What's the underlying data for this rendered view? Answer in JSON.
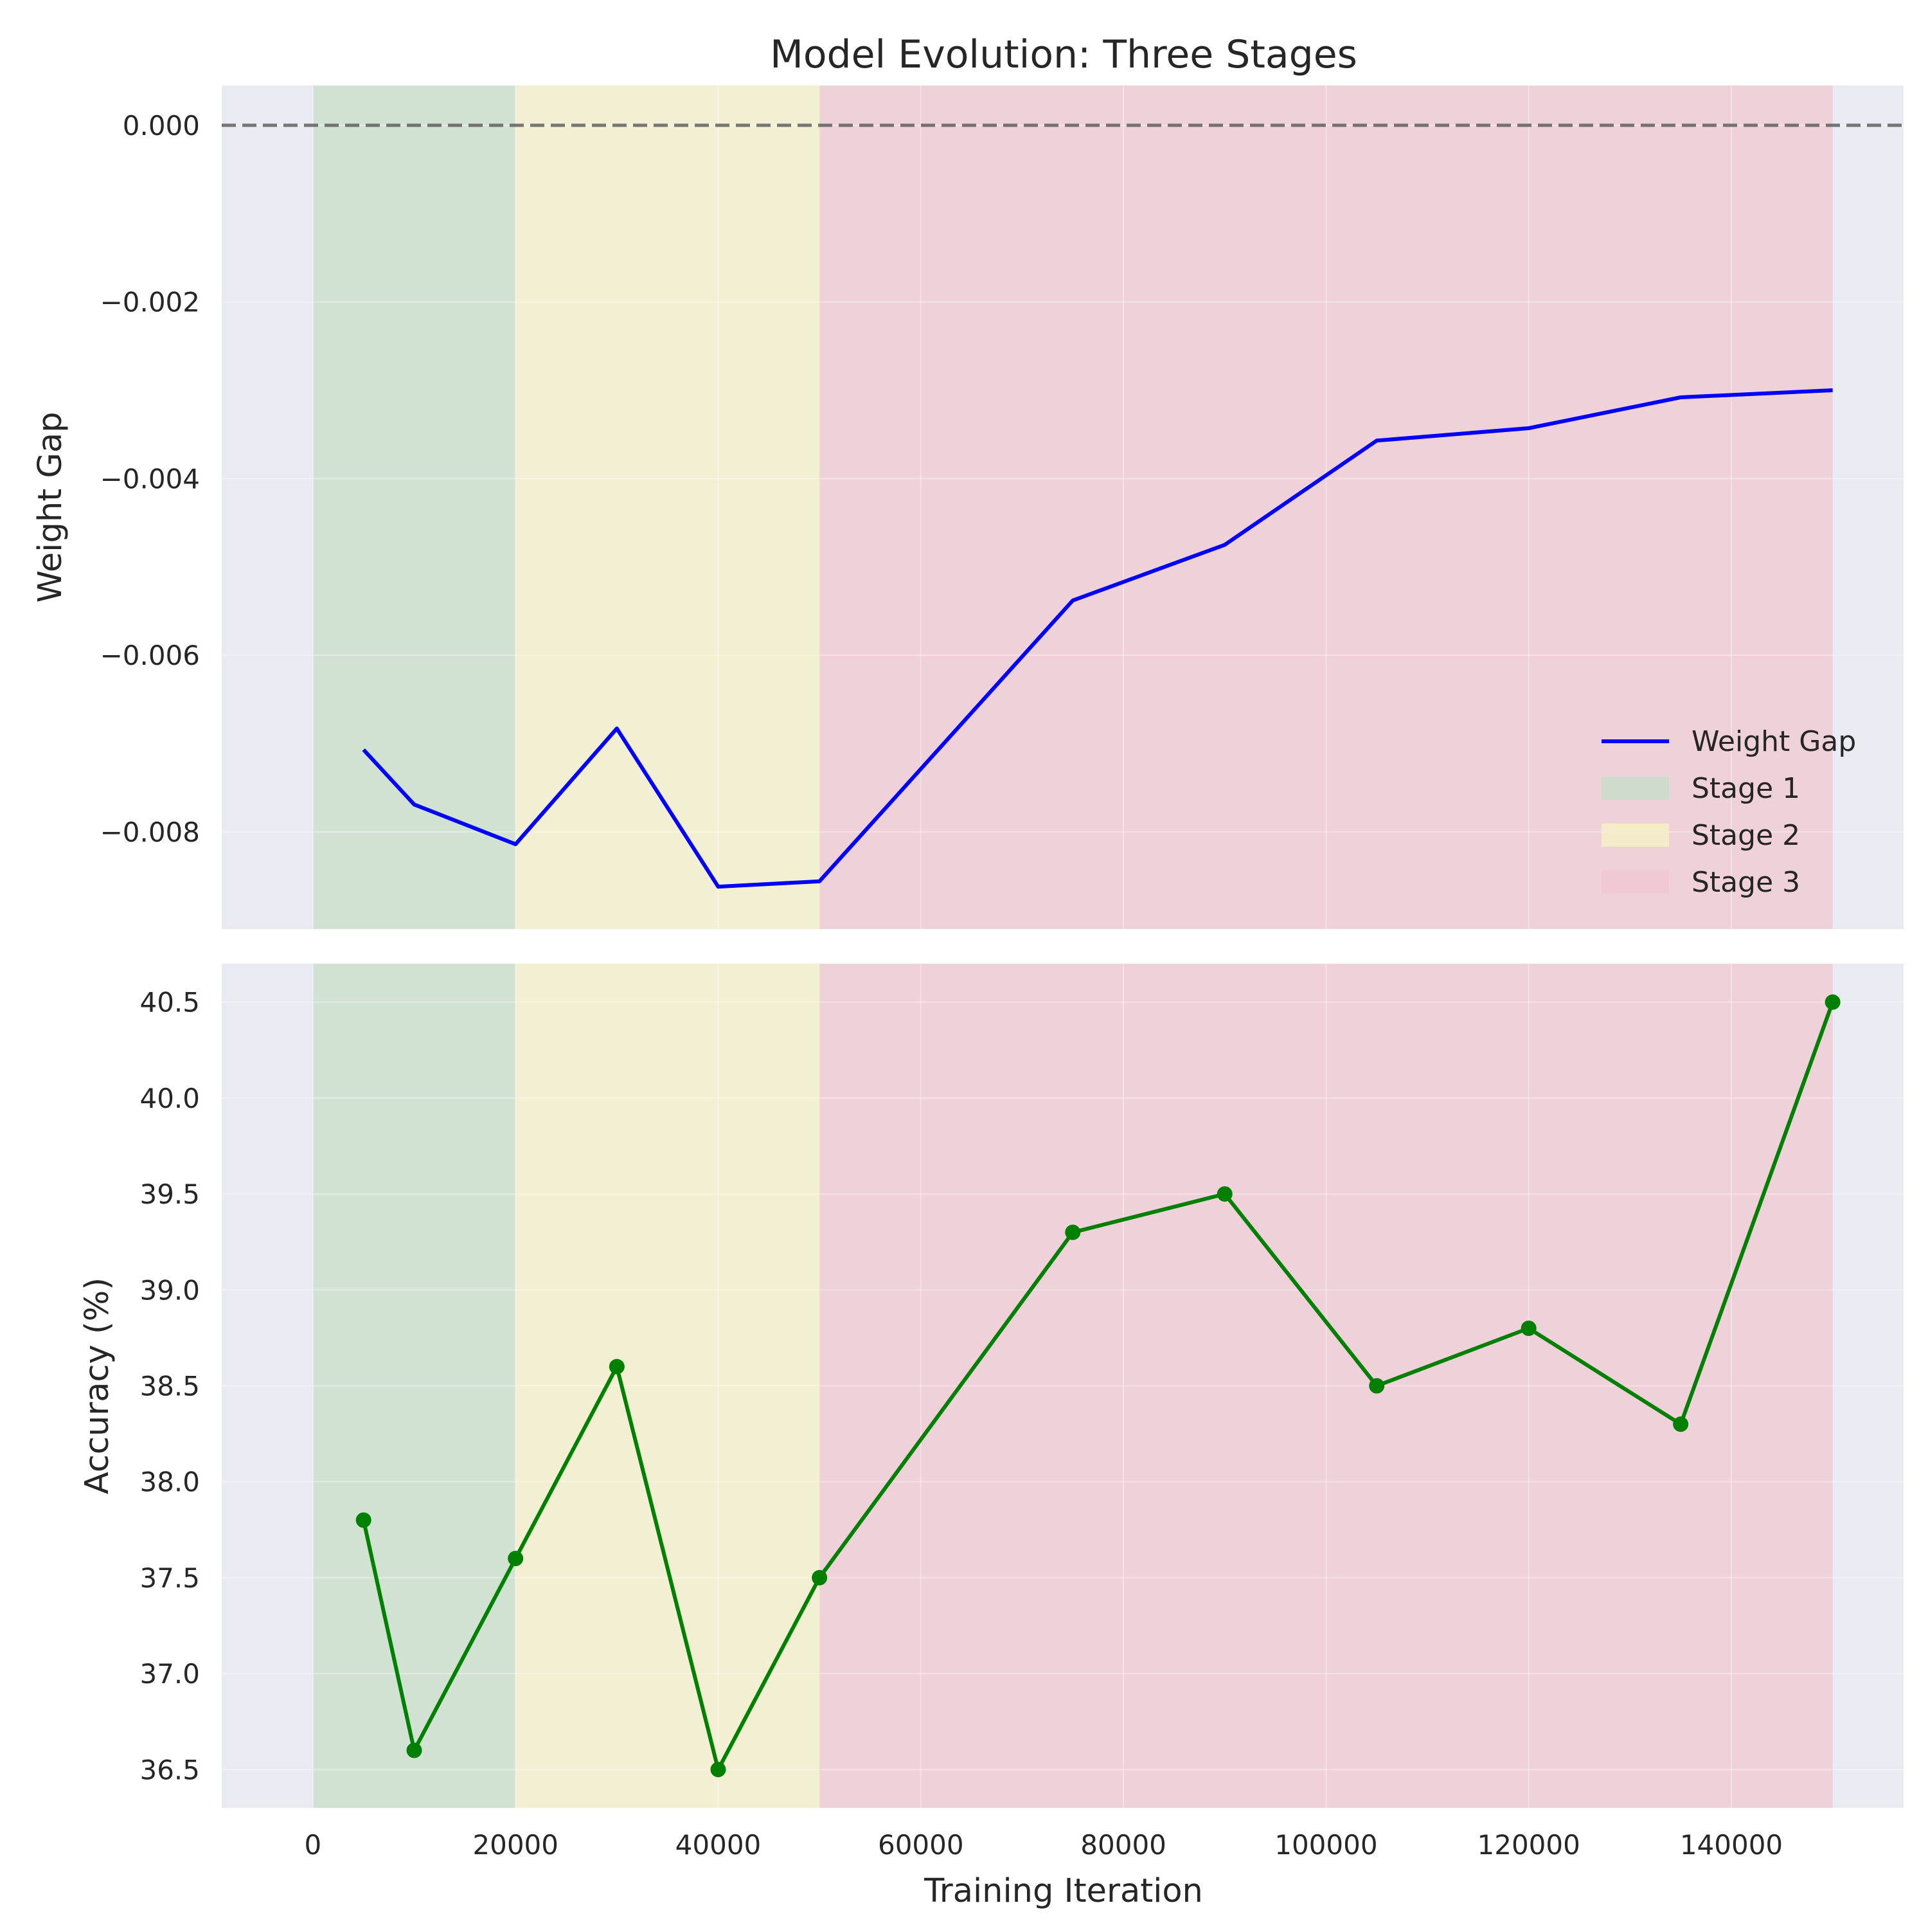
{
  "chart_data": {
    "title": "Model Evolution: Three Stages",
    "xlabel": "Training Iteration",
    "xlim": [
      -9000,
      157000
    ],
    "x_ticks": [
      "0",
      "20000",
      "40000",
      "60000",
      "80000",
      "100000",
      "120000",
      "140000"
    ],
    "x_tick_values": [
      0,
      20000,
      40000,
      60000,
      80000,
      100000,
      120000,
      140000
    ],
    "grid": true,
    "colors": {
      "axes_bg": "#eaeaf2",
      "stage1": "#c8dfc8",
      "stage2": "#f5f0c8",
      "stage3": "#f0c8d2",
      "weight_gap_line": "#0000ff",
      "accuracy_line": "#008000",
      "zero_line": "#555555"
    },
    "stages": [
      {
        "name": "Stage 1",
        "start": 0,
        "end": 20000
      },
      {
        "name": "Stage 2",
        "start": 20000,
        "end": 50000
      },
      {
        "name": "Stage 3",
        "start": 50000,
        "end": 150000
      }
    ],
    "panels": [
      {
        "id": "weight-gap",
        "type": "line",
        "ylabel": "Weight Gap",
        "ylim": [
          -0.0091,
          0.00045
        ],
        "y_ticks": [
          "0.000",
          "−0.002",
          "−0.004",
          "−0.006",
          "−0.008"
        ],
        "y_tick_values": [
          0,
          -0.002,
          -0.004,
          -0.006,
          -0.008
        ],
        "reference_line": 0,
        "markers": false,
        "legend": {
          "placement": "lower right",
          "entries": [
            "Weight Gap",
            "Stage 1",
            "Stage 2",
            "Stage 3"
          ]
        },
        "series": [
          {
            "name": "Weight Gap",
            "x": [
              5000,
              10000,
              20000,
              30000,
              40000,
              50000,
              75000,
              90000,
              105000,
              120000,
              135000,
              150000
            ],
            "y": [
              -0.00707,
              -0.00769,
              -0.00814,
              -0.00683,
              -0.00862,
              -0.00856,
              -0.00538,
              -0.00475,
              -0.00357,
              -0.00343,
              -0.00308,
              -0.003
            ]
          }
        ]
      },
      {
        "id": "accuracy",
        "type": "line",
        "ylabel": "Accuracy (%)",
        "ylim": [
          36.3,
          40.7
        ],
        "y_ticks": [
          "40.5",
          "40.0",
          "39.5",
          "39.0",
          "38.5",
          "38.0",
          "37.5",
          "37.0",
          "36.5"
        ],
        "y_tick_values": [
          40.5,
          40.0,
          39.5,
          39.0,
          38.5,
          38.0,
          37.5,
          37.0,
          36.5
        ],
        "markers": true,
        "series": [
          {
            "x": [
              5000,
              10000,
              20000,
              30000,
              40000,
              50000,
              75000,
              90000,
              105000,
              120000,
              135000,
              150000
            ],
            "y": [
              37.8,
              36.6,
              37.6,
              38.6,
              36.5,
              37.5,
              39.3,
              39.5,
              38.5,
              38.8,
              38.3,
              40.5
            ]
          }
        ]
      }
    ]
  }
}
